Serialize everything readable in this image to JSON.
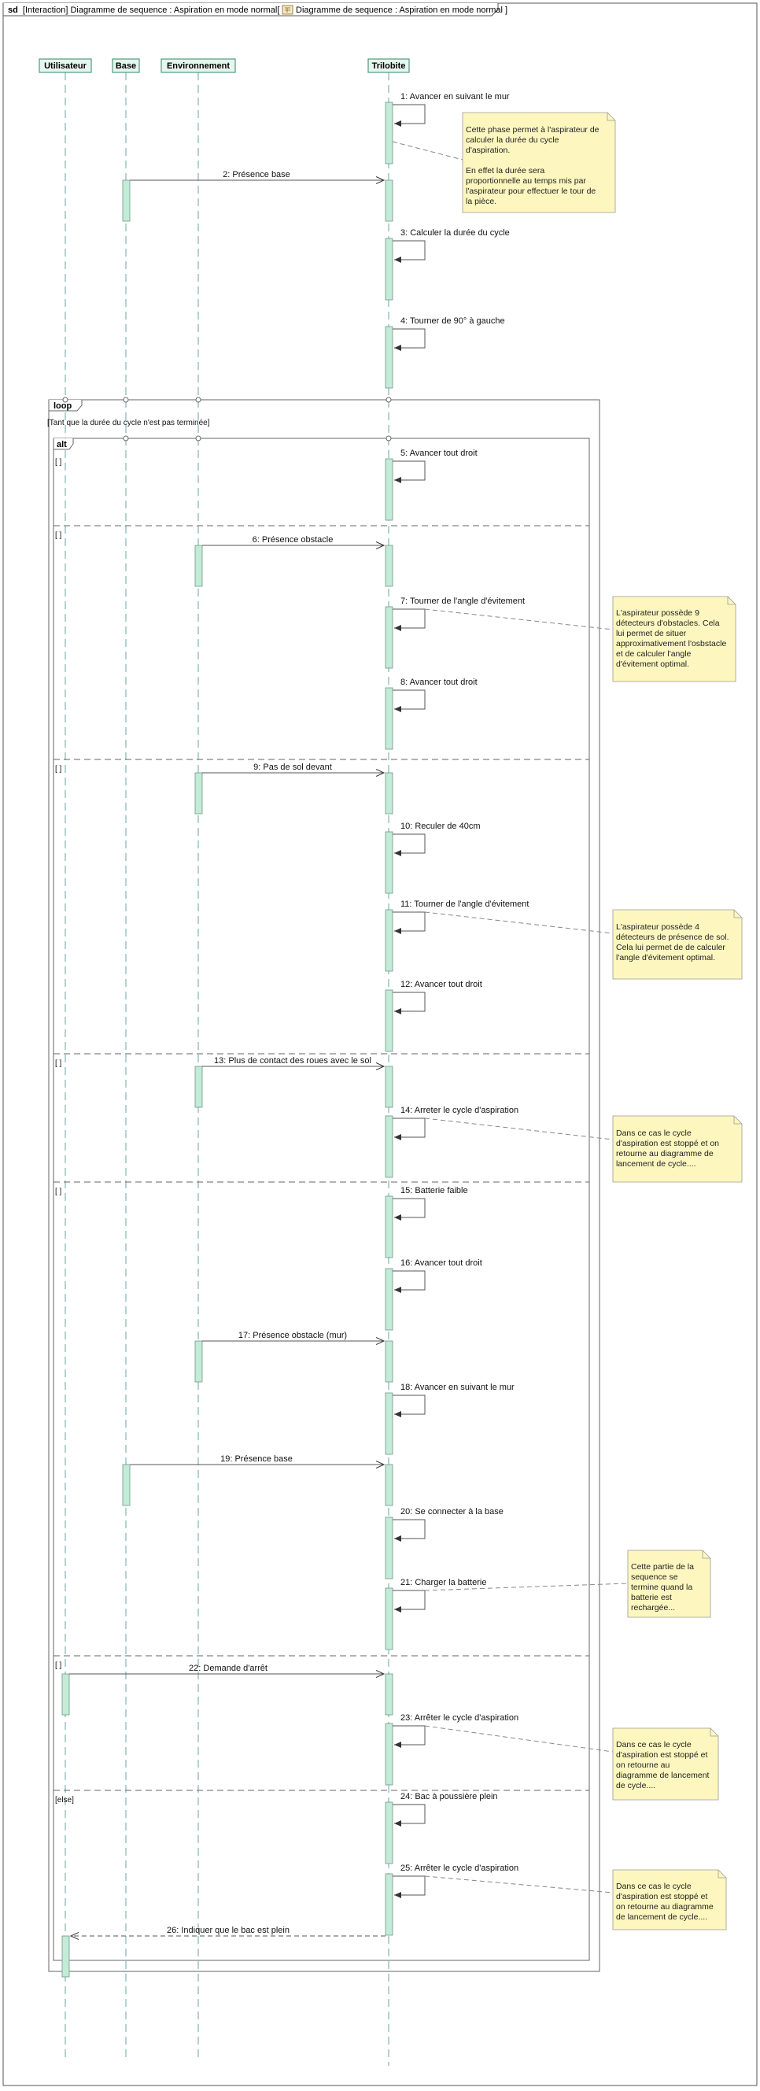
{
  "diagram": {
    "frame_keyword": "sd",
    "frame_title": "[Interaction] Diagramme de sequence : Aspiration en mode normal[",
    "frame_title_ref": "Diagramme de sequence : Aspiration en mode normal ]",
    "lifelines": [
      "Utilisateur",
      "Base",
      "Environnement",
      "Trilobite"
    ],
    "loop_label": "loop",
    "loop_guard": "[Tant que la durée du cycle n'est pas terminée]",
    "alt_label": "alt",
    "guards": [
      "[ ]",
      "[ ]",
      "[ ]",
      "[ ]",
      "[ ]",
      "[ ]",
      "[else]"
    ],
    "messages": [
      "1: Avancer en suivant le mur",
      "2: Présence base",
      "3: Calculer la durée du cycle",
      "4: Tourner  de 90° à gauche",
      "5: Avancer tout droit",
      "6: Présence obstacle",
      "7: Tourner de l'angle d'évitement",
      "8: Avancer tout droit",
      "9: Pas de sol devant",
      "10: Reculer de 40cm",
      "11: Tourner de l'angle d'évitement",
      "12: Avancer tout droit",
      "13: Plus de contact des roues avec le sol",
      "14: Arreter le cycle d'aspiration",
      "15: Batterie faible",
      "16: Avancer tout droit",
      "17: Présence obstacle (mur)",
      "18: Avancer en suivant le mur",
      "19: Présence base",
      "20: Se connecter à la base",
      "21: Charger la batterie",
      "22: Demande d'arrêt",
      "23: Arrêter le cycle d'aspiration",
      "24: Bac à poussière plein",
      "25: Arrêter le cycle d'aspiration",
      "26: Indiquer que le bac est plein"
    ],
    "notes": [
      [
        "Cette phase permet à l'aspirateur de",
        "calculer la durée du cycle",
        "d'aspiration.",
        "",
        "En effet la durée sera",
        "proportionnelle au temps mis par",
        "l'aspirateur pour effectuer le tour de",
        "la pièce."
      ],
      [
        "L'aspirateur possède 9",
        "détecteurs d'obstacles. Cela",
        "lui permet de situer",
        "approximativement l'osbstacle",
        "et de calculer l'angle",
        "d'évitement optimal."
      ],
      [
        "L'aspirateur possède 4",
        "détecteurs de présence de sol.",
        "Cela lui permet de de calculer",
        "l'angle d'évitement optimal."
      ],
      [
        "Dans ce cas le cycle",
        "d'aspiration est stoppé et on",
        "retourne au diagramme de",
        "lancement de cycle...."
      ],
      [
        "Cette partie de la",
        "sequence se",
        "termine quand la",
        "batterie est",
        "rechargée..."
      ],
      [
        "Dans ce cas le cycle",
        "d'aspiration est stoppé et",
        "on retourne au",
        "diagramme de lancement",
        "de cycle...."
      ],
      [
        "Dans ce cas le cycle",
        "d'aspiration est stoppé et",
        "on retourne au diagramme",
        "de lancement de cycle...."
      ]
    ]
  }
}
